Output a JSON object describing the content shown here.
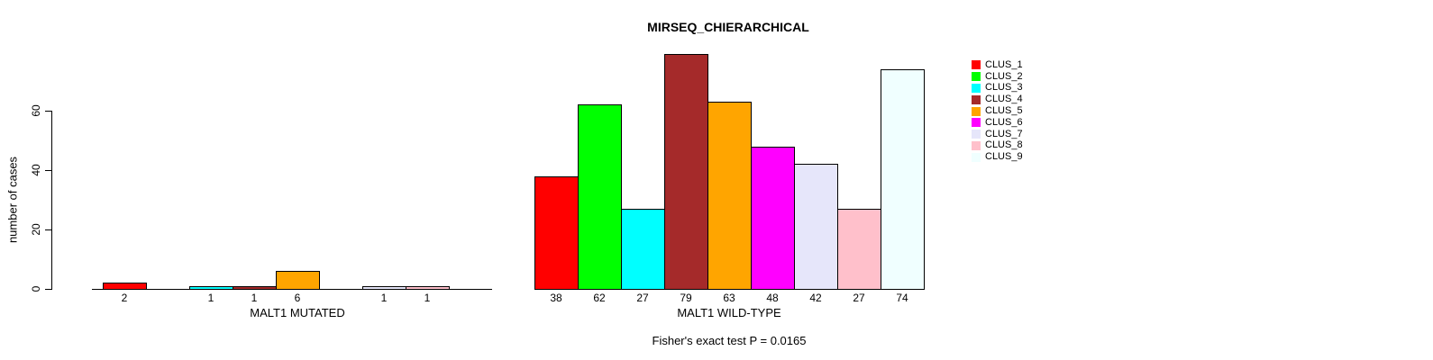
{
  "chart_data": {
    "type": "bar",
    "title": "MIRSEQ_CHIERARCHICAL",
    "ylabel": "number of cases",
    "yticks": [
      0,
      20,
      40,
      60
    ],
    "ylim": [
      0,
      79
    ],
    "grid": false,
    "legend_position": "top-right",
    "categories": [
      "CLUS_1",
      "CLUS_2",
      "CLUS_3",
      "CLUS_4",
      "CLUS_5",
      "CLUS_6",
      "CLUS_7",
      "CLUS_8",
      "CLUS_9"
    ],
    "palette": [
      "#FF0000",
      "#00FF00",
      "#00FFFF",
      "#A52A2A",
      "#FFA500",
      "#FF00FF",
      "#E6E6FA",
      "#FFC0CB",
      "#F0FFFF"
    ],
    "bar_border_color": "#000000",
    "groups": [
      {
        "xlabel": "MALT1 MUTATED",
        "values": [
          2,
          0,
          1,
          1,
          6,
          0,
          1,
          1,
          0
        ],
        "shown_bar_labels": [
          "2",
          "1",
          "1",
          "6",
          "1",
          "1"
        ]
      },
      {
        "xlabel": "MALT1 WILD-TYPE",
        "values": [
          38,
          62,
          27,
          79,
          63,
          48,
          42,
          27,
          74
        ],
        "shown_bar_labels": [
          "38",
          "62",
          "27",
          "79",
          "63",
          "48",
          "42",
          "27",
          "74"
        ]
      }
    ],
    "annotation": "Fisher's exact test P = 0.0165"
  }
}
